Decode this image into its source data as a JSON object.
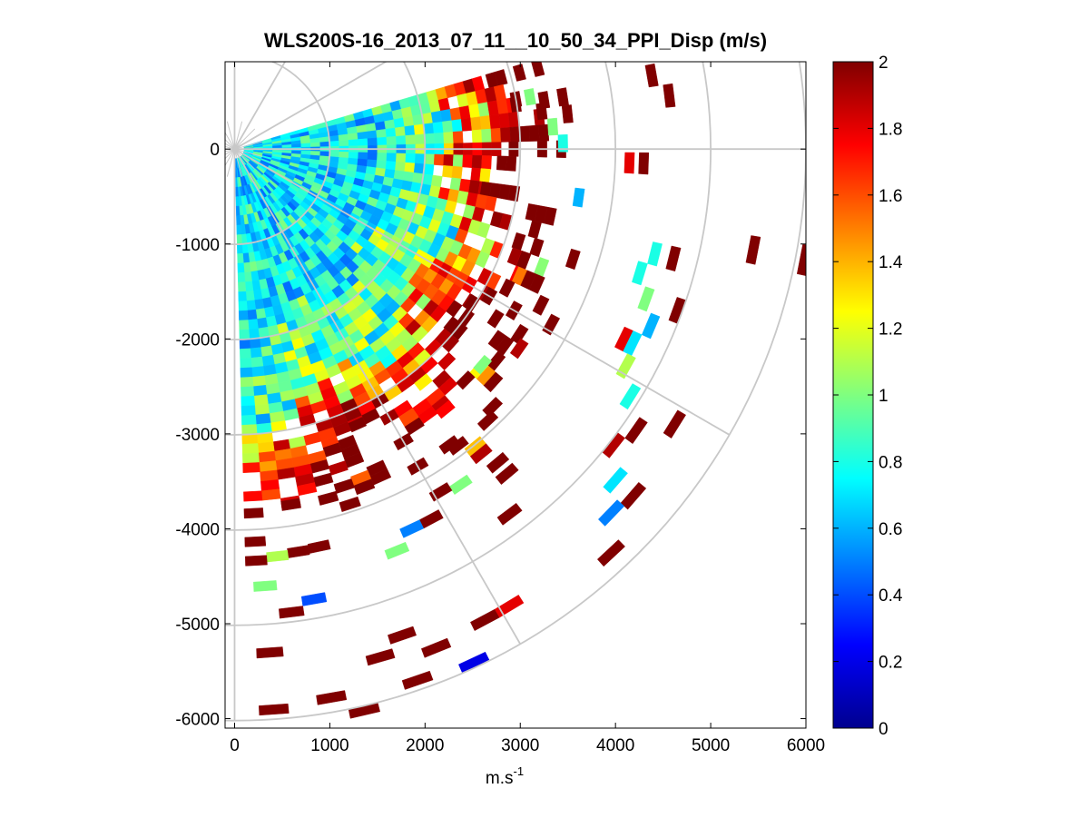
{
  "chart_data": {
    "type": "heatmap",
    "projection": "polar-ppi",
    "title": "WLS200S-16_2013_07_11__10_50_34_PPI_Disp (m/s)",
    "xlabel": "m.s",
    "xlabel_superscript": "-1",
    "ylabel": "",
    "xlim": [
      -100,
      6000
    ],
    "ylim": [
      -6100,
      920
    ],
    "x_ticks": [
      0,
      1000,
      2000,
      3000,
      4000,
      5000,
      6000
    ],
    "x_tick_labels": [
      "0",
      "1000",
      "2000",
      "3000",
      "4000",
      "5000",
      "6000"
    ],
    "y_ticks": [
      0,
      -1000,
      -2000,
      -3000,
      -4000,
      -5000,
      -6000
    ],
    "y_tick_labels": [
      "0",
      "-1000",
      "-2000",
      "-3000",
      "-4000",
      "-5000",
      "-6000"
    ],
    "grid": true,
    "range_rings_m": [
      1000,
      2000,
      3000,
      4000,
      5000,
      6000
    ],
    "radial_lines_deg": [
      0,
      -30,
      -60,
      -90,
      30,
      60,
      90
    ],
    "colormap": "jet",
    "color_range": [
      0,
      2
    ],
    "colorbar": {
      "position": "right",
      "ticks": [
        0,
        0.2,
        0.4,
        0.6,
        0.8,
        1.0,
        1.2,
        1.4,
        1.6,
        1.8,
        2.0
      ],
      "tick_labels": [
        "0",
        "0.2",
        "0.4",
        "0.6",
        "0.8",
        "1",
        "1.2",
        "1.4",
        "1.6",
        "1.8",
        "2"
      ]
    },
    "scan": {
      "azimuth_start_deg": 15,
      "azimuth_end_deg": -88,
      "azimuth_step_deg": 3,
      "range_gate_m": 100,
      "max_range_m": 6000
    },
    "cells": [
      {
        "az": 10,
        "r": 3150,
        "v": 1.0
      },
      {
        "az": 10,
        "r": 3000,
        "v": 2.0
      },
      {
        "az": 7,
        "r": 3250,
        "v": 2.0
      },
      {
        "az": 4,
        "r": 3350,
        "v": 1.0
      },
      {
        "az": 1,
        "r": 3450,
        "v": 0.8
      },
      {
        "az": 13,
        "r": 4800,
        "v": 2.0
      },
      {
        "az": 10,
        "r": 4450,
        "v": 2.0
      },
      {
        "az": 7,
        "r": 4600,
        "v": 2.0
      },
      {
        "az": -2,
        "r": 4150,
        "v": 1.8
      },
      {
        "az": -2,
        "r": 4300,
        "v": 2.0
      },
      {
        "az": -8,
        "r": 3650,
        "v": 0.6
      },
      {
        "az": -14,
        "r": 4550,
        "v": 0.8
      },
      {
        "az": -17,
        "r": 4450,
        "v": 0.8
      },
      {
        "az": -14,
        "r": 4750,
        "v": 2.0
      },
      {
        "az": -11,
        "r": 5550,
        "v": 2.0
      },
      {
        "az": -11,
        "r": 6100,
        "v": 2.0
      },
      {
        "az": -20,
        "r": 4600,
        "v": 1.0
      },
      {
        "az": -23,
        "r": 4750,
        "v": 0.6
      },
      {
        "az": -26,
        "r": 4550,
        "v": 1.8
      },
      {
        "az": -26,
        "r": 4650,
        "v": 0.7
      },
      {
        "az": -29,
        "r": 4700,
        "v": 1.1
      },
      {
        "az": -32,
        "r": 4900,
        "v": 0.8
      },
      {
        "az": -35,
        "r": 5150,
        "v": 2.0
      },
      {
        "az": -38,
        "r": 5050,
        "v": 1.9
      },
      {
        "az": -41,
        "r": 5300,
        "v": 0.7
      },
      {
        "az": -41,
        "r": 5550,
        "v": 2.0
      },
      {
        "az": -44,
        "r": 5500,
        "v": 0.5
      },
      {
        "az": -47,
        "r": 5800,
        "v": 2.0
      },
      {
        "az": -32,
        "r": 5450,
        "v": 2.0
      },
      {
        "az": -20,
        "r": 4950,
        "v": 2.0
      },
      {
        "az": -29,
        "r": 3800,
        "v": 2.0
      },
      {
        "az": -35,
        "r": 3650,
        "v": 1.9
      },
      {
        "az": -41,
        "r": 3450,
        "v": 1.0
      },
      {
        "az": -47,
        "r": 3900,
        "v": 2.0
      },
      {
        "az": -50,
        "r": 4450,
        "v": 2.0
      },
      {
        "az": -53,
        "r": 4800,
        "v": 2.0
      },
      {
        "az": -56,
        "r": 4250,
        "v": 1.0
      },
      {
        "az": -59,
        "r": 4200,
        "v": 2.0
      },
      {
        "az": -62,
        "r": 4400,
        "v": 2.0
      },
      {
        "az": -65,
        "r": 4400,
        "v": 0.5
      },
      {
        "az": -68,
        "r": 4550,
        "v": 1.0
      },
      {
        "az": -71,
        "r": 5400,
        "v": 2.0
      },
      {
        "az": -74,
        "r": 5550,
        "v": 2.0
      },
      {
        "az": -77,
        "r": 6050,
        "v": 2.0
      },
      {
        "az": -80,
        "r": 4800,
        "v": 0.4
      },
      {
        "az": -83,
        "r": 4900,
        "v": 2.0
      },
      {
        "az": -86,
        "r": 5300,
        "v": 2.0
      },
      {
        "az": -86,
        "r": 4600,
        "v": 1.0
      },
      {
        "az": -71,
        "r": 5900,
        "v": 2.0
      },
      {
        "az": -62,
        "r": 5600,
        "v": 2.0
      },
      {
        "az": -65,
        "r": 5950,
        "v": 0.2
      },
      {
        "az": -68,
        "r": 5650,
        "v": 2.0
      },
      {
        "az": -80,
        "r": 5850,
        "v": 2.0
      },
      {
        "az": -86,
        "r": 5900,
        "v": 2.0
      },
      {
        "az": -59,
        "r": 5600,
        "v": 1.8
      },
      {
        "az": -53,
        "r": 3900,
        "v": 2.0
      },
      {
        "az": -50,
        "r": 4300,
        "v": 2.0
      }
    ]
  }
}
